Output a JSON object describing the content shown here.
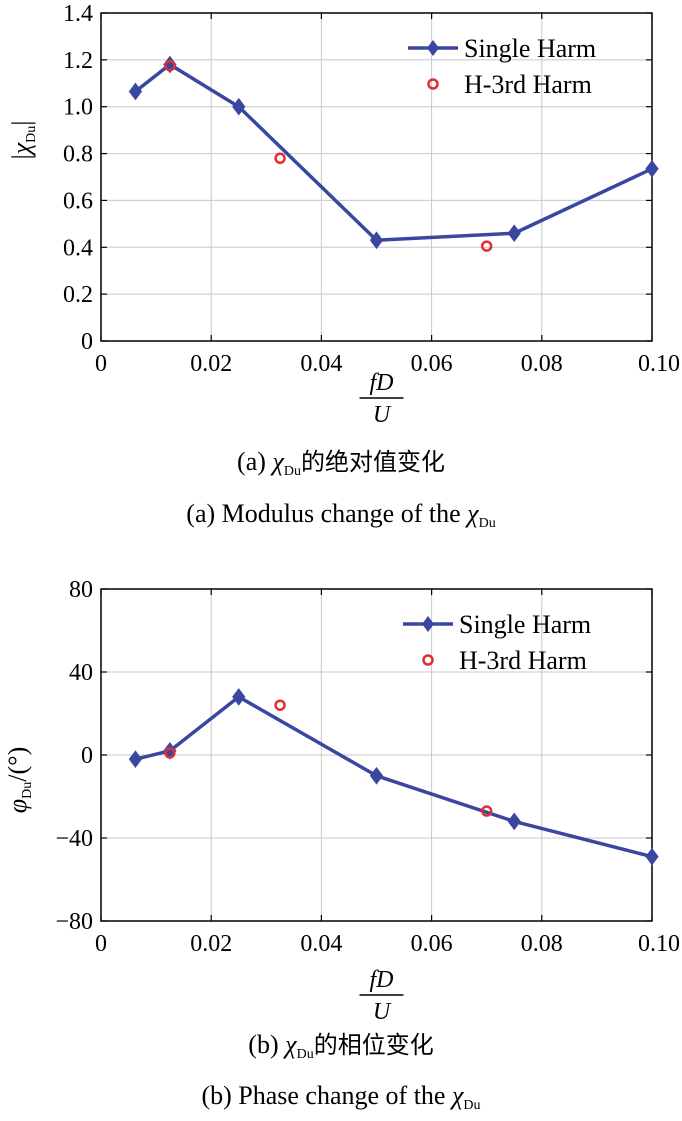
{
  "chart_data": [
    {
      "type": "line",
      "xlabel": {
        "numerator": "fD",
        "denominator": "U"
      },
      "ylabel": {
        "left": "|",
        "symbol": "χ",
        "subscript_main": "D",
        "subscript_italic": "u",
        "right": "|"
      },
      "xlim": [
        0,
        0.1
      ],
      "ylim": [
        0,
        1.4
      ],
      "xticks": [
        0,
        0.02,
        0.04,
        0.06,
        0.08,
        0.1
      ],
      "xtick_labels": [
        "0",
        "0.02",
        "0.04",
        "0.06",
        "0.08",
        "0.10"
      ],
      "yticks": [
        0,
        0.2,
        0.4,
        0.6,
        0.8,
        1.0,
        1.2,
        1.4
      ],
      "ytick_labels": [
        "0",
        "0.2",
        "0.4",
        "0.6",
        "0.8",
        "1.0",
        "1.2",
        "1.4"
      ],
      "grid": true,
      "legend_position": "top-right",
      "series": [
        {
          "name": "Single Harm",
          "marker": "diamond",
          "line": true,
          "color": "#3a47a1",
          "x": [
            0.00625,
            0.0125,
            0.025,
            0.05,
            0.075,
            0.1
          ],
          "y": [
            1.065,
            1.18,
            1.0,
            0.43,
            0.46,
            0.735
          ]
        },
        {
          "name": "H-3rd Harm",
          "marker": "circle",
          "line": false,
          "color": "#e03030",
          "x": [
            0.0125,
            0.0325,
            0.07
          ],
          "y": [
            1.175,
            0.78,
            0.405
          ]
        }
      ],
      "caption_zh": {
        "prefix": "(a) ",
        "symbol": "χ",
        "sub_main": "D",
        "sub_italic": "u",
        "text": "的绝对值变化"
      },
      "caption_en": {
        "text": "(a) Modulus change of the ",
        "symbol": "χ",
        "sub_main": "D",
        "sub_italic": "u"
      }
    },
    {
      "type": "line",
      "xlabel": {
        "numerator": "fD",
        "denominator": "U"
      },
      "ylabel": {
        "symbol": "φ",
        "subscript_main": "D",
        "subscript_italic": "u",
        "unit": "/(°)"
      },
      "xlim": [
        0,
        0.1
      ],
      "ylim": [
        -80,
        80
      ],
      "xticks": [
        0,
        0.02,
        0.04,
        0.06,
        0.08,
        0.1
      ],
      "xtick_labels": [
        "0",
        "0.02",
        "0.04",
        "0.06",
        "0.08",
        "0.10"
      ],
      "yticks": [
        -80,
        -40,
        0,
        40,
        80
      ],
      "ytick_labels": [
        "−80",
        "−40",
        "0",
        "40",
        "80"
      ],
      "grid": true,
      "legend_position": "top-right",
      "series": [
        {
          "name": "Single Harm",
          "marker": "diamond",
          "line": true,
          "color": "#3a47a1",
          "x": [
            0.00625,
            0.0125,
            0.025,
            0.05,
            0.075,
            0.1
          ],
          "y": [
            -2,
            2,
            28,
            -10,
            -32,
            -49
          ]
        },
        {
          "name": "H-3rd Harm",
          "marker": "circle",
          "line": false,
          "color": "#e03030",
          "x": [
            0.0125,
            0.0325,
            0.07
          ],
          "y": [
            1,
            24,
            -27
          ]
        }
      ],
      "caption_zh": {
        "prefix": "(b) ",
        "symbol": "χ",
        "sub_main": "D",
        "sub_italic": "u",
        "text": "的相位变化"
      },
      "caption_en": {
        "text": "(b) Phase change of the ",
        "symbol": "χ",
        "sub_main": "D",
        "sub_italic": "u"
      }
    }
  ]
}
